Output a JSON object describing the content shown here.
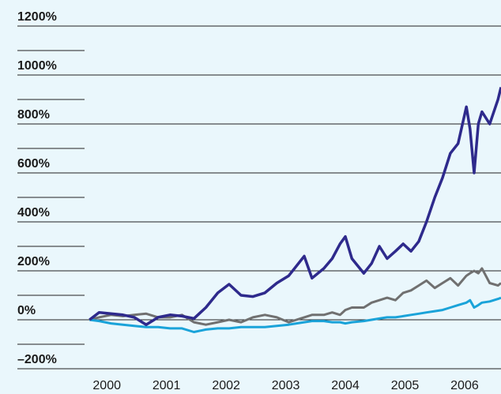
{
  "chart_data": {
    "type": "line",
    "x": [
      2000.21,
      2000.37,
      2000.57,
      2000.77,
      2000.96,
      2001.16,
      2001.36,
      2001.56,
      2001.76,
      2001.96,
      2002.16,
      2002.36,
      2002.55,
      2002.75,
      2002.95,
      2003.15,
      2003.35,
      2003.55,
      2003.68,
      2003.81,
      2003.94,
      2004.14,
      2004.28,
      2004.41,
      2004.5,
      2004.61,
      2004.81,
      2004.94,
      2005.07,
      2005.2,
      2005.34,
      2005.47,
      2005.6,
      2005.73,
      2005.86,
      2006.0,
      2006.13,
      2006.26,
      2006.39,
      2006.53,
      2006.59,
      2006.66,
      2006.73,
      2006.79,
      2006.92,
      2007.06,
      2007.11
    ],
    "series": [
      {
        "color": "#707070",
        "values": [
          0,
          10,
          20,
          15,
          20,
          25,
          10,
          10,
          20,
          -10,
          -20,
          -10,
          0,
          -10,
          10,
          20,
          10,
          -10,
          0,
          10,
          20,
          20,
          30,
          20,
          40,
          50,
          50,
          70,
          80,
          90,
          80,
          110,
          120,
          140,
          160,
          130,
          150,
          170,
          140,
          180,
          190,
          200,
          190,
          210,
          150,
          140,
          150
        ]
      },
      {
        "color": "#1aa3d9",
        "values": [
          0,
          -5,
          -15,
          -20,
          -25,
          -30,
          -30,
          -35,
          -35,
          -50,
          -40,
          -35,
          -35,
          -30,
          -30,
          -30,
          -25,
          -20,
          -15,
          -10,
          -5,
          -5,
          -10,
          -10,
          -15,
          -10,
          -5,
          0,
          5,
          10,
          10,
          15,
          20,
          25,
          30,
          35,
          40,
          50,
          60,
          70,
          80,
          50,
          60,
          70,
          75,
          85,
          90
        ]
      },
      {
        "color": "#2e2a8c",
        "values": [
          0,
          30,
          25,
          20,
          10,
          -20,
          10,
          20,
          15,
          5,
          50,
          110,
          145,
          100,
          95,
          110,
          150,
          180,
          220,
          260,
          170,
          210,
          250,
          310,
          340,
          250,
          190,
          230,
          300,
          250,
          280,
          310,
          280,
          320,
          400,
          500,
          580,
          680,
          720,
          870,
          780,
          600,
          800,
          850,
          800,
          900,
          950
        ]
      }
    ],
    "xlim": [
      1999.0,
      2007.11
    ],
    "xticks": [
      {
        "value": 2000.5,
        "label": "2000"
      },
      {
        "value": 2001.5,
        "label": "2001"
      },
      {
        "value": 2002.5,
        "label": "2002"
      },
      {
        "value": 2003.5,
        "label": "2003"
      },
      {
        "value": 2004.5,
        "label": "2004"
      },
      {
        "value": 2005.5,
        "label": "2005"
      },
      {
        "value": 2006.5,
        "label": "2006"
      }
    ],
    "ylim": [
      -300,
      1300
    ],
    "yticks": [
      {
        "value": -200,
        "label": "–200%"
      },
      {
        "value": 0,
        "label": "0%"
      },
      {
        "value": 200,
        "label": "200%"
      },
      {
        "value": 400,
        "label": "400%"
      },
      {
        "value": 600,
        "label": "600%"
      },
      {
        "value": 800,
        "label": "800%"
      },
      {
        "value": 1000,
        "label": "1000%"
      },
      {
        "value": 1200,
        "label": "1200%"
      }
    ],
    "yticks_minor": [
      -100,
      100,
      300,
      500,
      700,
      900,
      1100
    ],
    "grid": true
  }
}
